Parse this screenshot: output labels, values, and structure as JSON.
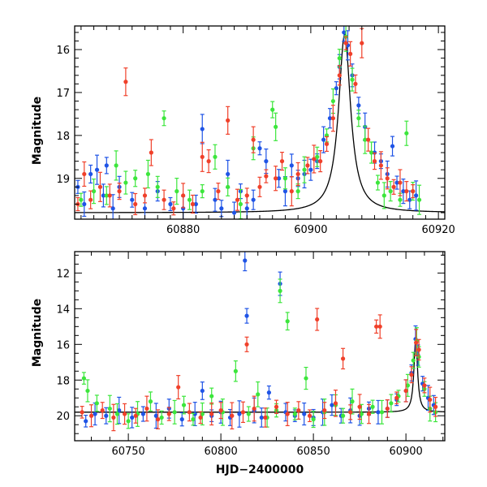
{
  "colors": {
    "blue": "#1f54e6",
    "green": "#3ce63c",
    "red": "#f0402a",
    "model": "#000000"
  },
  "chart_data": [
    {
      "type": "scatter",
      "title": "",
      "xlabel": "",
      "ylabel": "Magnitude",
      "y_inverted": true,
      "xlim": [
        60863,
        60921
      ],
      "ylim": [
        19.95,
        15.45
      ],
      "xticks": [
        60880,
        60900,
        60920
      ],
      "yticks": [
        16,
        17,
        18,
        19
      ],
      "model_curve": {
        "type": "line",
        "description": "single-lens microlensing fit",
        "t0": 60905.3,
        "baseline": 19.8,
        "peak": 15.65,
        "tE": 12
      },
      "series": [
        {
          "color_key": "blue",
          "points": [
            [
              60863.5,
              19.2
            ],
            [
              60864.5,
              19.6
            ],
            [
              60865.5,
              18.9
            ],
            [
              60866.5,
              18.8
            ],
            [
              60867.5,
              19.4
            ],
            [
              60868,
              18.7
            ],
            [
              60869,
              19.7
            ],
            [
              60870,
              19.2
            ],
            [
              60872,
              19.5
            ],
            [
              60874,
              19.7
            ],
            [
              60876,
              19.3
            ],
            [
              60878,
              19.6
            ],
            [
              60880,
              19.7
            ],
            [
              60882,
              19.6
            ],
            [
              60883,
              17.85
            ],
            [
              60885,
              19.5
            ],
            [
              60886,
              19.7
            ],
            [
              60887,
              18.9
            ],
            [
              60888,
              19.8
            ],
            [
              60889,
              19.3
            ],
            [
              60890,
              19.7
            ],
            [
              60891,
              19.5
            ],
            [
              60892,
              18.3
            ],
            [
              60893,
              18.6
            ],
            [
              60895,
              19.0
            ],
            [
              60896,
              19.3
            ],
            [
              60897,
              18.7
            ],
            [
              60898,
              19.0
            ],
            [
              60899,
              18.9
            ],
            [
              60900,
              18.8
            ],
            [
              60901,
              18.6
            ],
            [
              60902,
              18.1
            ],
            [
              60903,
              17.6
            ],
            [
              60904,
              16.9
            ],
            [
              60904.5,
              16.4
            ],
            [
              60905.2,
              15.6
            ],
            [
              60905.8,
              15.9
            ],
            [
              60906.5,
              16.6
            ],
            [
              60907.5,
              17.3
            ],
            [
              60908.5,
              17.8
            ],
            [
              60910,
              18.4
            ],
            [
              60911,
              18.6
            ],
            [
              60912,
              18.9
            ],
            [
              60912.8,
              18.25
            ],
            [
              60913.5,
              19.1
            ],
            [
              60914.5,
              19.3
            ],
            [
              60915.5,
              19.5
            ],
            [
              60916.5,
              19.4
            ]
          ]
        },
        {
          "color_key": "green",
          "points": [
            [
              60864,
              19.5
            ],
            [
              60866,
              19.3
            ],
            [
              60868,
              19.4
            ],
            [
              60869.5,
              18.7
            ],
            [
              60871,
              19.1
            ],
            [
              60872.5,
              19.0
            ],
            [
              60874.5,
              18.9
            ],
            [
              60876,
              19.2
            ],
            [
              60877,
              17.6
            ],
            [
              60879,
              19.3
            ],
            [
              60881,
              19.5
            ],
            [
              60883,
              19.3
            ],
            [
              60885,
              18.5
            ],
            [
              60887,
              19.2
            ],
            [
              60889,
              19.6
            ],
            [
              60891,
              18.3
            ],
            [
              60894,
              17.4
            ],
            [
              60894.5,
              17.8
            ],
            [
              60896,
              19.0
            ],
            [
              60898,
              19.3
            ],
            [
              60899,
              18.8
            ],
            [
              60901,
              18.5
            ],
            [
              60902.5,
              18.0
            ],
            [
              60903.5,
              17.2
            ],
            [
              60904.5,
              16.2
            ],
            [
              60905.5,
              15.7
            ],
            [
              60906.5,
              16.7
            ],
            [
              60907.5,
              17.6
            ],
            [
              60908.5,
              18.1
            ],
            [
              60909.5,
              18.4
            ],
            [
              60910.5,
              19.1
            ],
            [
              60911.5,
              19.4
            ],
            [
              60912.5,
              19.3
            ],
            [
              60914,
              19.5
            ],
            [
              60915,
              17.95
            ],
            [
              60916,
              19.3
            ],
            [
              60917,
              19.5
            ]
          ]
        },
        {
          "color_key": "red",
          "points": [
            [
              60863.5,
              19.6
            ],
            [
              60864.5,
              18.9
            ],
            [
              60865.5,
              19.5
            ],
            [
              60867,
              19.2
            ],
            [
              60868.5,
              19.4
            ],
            [
              60870,
              19.3
            ],
            [
              60871,
              16.75
            ],
            [
              60872.5,
              19.6
            ],
            [
              60874,
              19.4
            ],
            [
              60875,
              18.4
            ],
            [
              60877,
              19.5
            ],
            [
              60878.5,
              19.7
            ],
            [
              60880,
              19.4
            ],
            [
              60881.5,
              19.6
            ],
            [
              60883,
              18.5
            ],
            [
              60884,
              18.6
            ],
            [
              60885.5,
              19.3
            ],
            [
              60887,
              17.65
            ],
            [
              60888.5,
              19.5
            ],
            [
              60890,
              19.4
            ],
            [
              60891,
              18.1
            ],
            [
              60892,
              19.2
            ],
            [
              60893,
              18.95
            ],
            [
              60894.5,
              19.0
            ],
            [
              60895.5,
              18.6
            ],
            [
              60897,
              19.3
            ],
            [
              60898,
              18.9
            ],
            [
              60899.5,
              18.7
            ],
            [
              60900.5,
              18.55
            ],
            [
              60901.5,
              18.6
            ],
            [
              60902.5,
              18.2
            ],
            [
              60903.5,
              17.6
            ],
            [
              60904.5,
              16.6
            ],
            [
              60905.5,
              15.85
            ],
            [
              60906.2,
              16.1
            ],
            [
              60907,
              16.8
            ],
            [
              60908,
              15.85
            ],
            [
              60909,
              18.1
            ],
            [
              60910,
              18.6
            ],
            [
              60911,
              18.7
            ],
            [
              60912,
              19.0
            ],
            [
              60913,
              19.2
            ],
            [
              60914,
              19.1
            ],
            [
              60915,
              19.3
            ],
            [
              60916,
              19.3
            ]
          ]
        }
      ]
    },
    {
      "type": "scatter",
      "title": "",
      "xlabel": "HJD−2400000",
      "ylabel": "Magnitude",
      "y_inverted": true,
      "xlim": [
        60721,
        60921
      ],
      "ylim": [
        21.4,
        10.8
      ],
      "xticks": [
        60750,
        60800,
        60850,
        60900
      ],
      "yticks": [
        12,
        14,
        16,
        18,
        20
      ],
      "model_curve": {
        "type": "line",
        "description": "single-lens microlensing fit",
        "t0": 60905.3,
        "baseline": 19.8,
        "peak": 15.65,
        "tE": 12
      },
      "series": [
        {
          "color_key": "blue",
          "points": [
            [
              60727,
              20.3
            ],
            [
              60732,
              19.9
            ],
            [
              60738,
              20.0
            ],
            [
              60745,
              19.7
            ],
            [
              60752,
              20.1
            ],
            [
              60758,
              19.9
            ],
            [
              60765,
              20.0
            ],
            [
              60772,
              19.6
            ],
            [
              60779,
              20.2
            ],
            [
              60786,
              19.9
            ],
            [
              60790,
              18.6
            ],
            [
              60795,
              20.0
            ],
            [
              60800,
              19.8
            ],
            [
              60805,
              20.1
            ],
            [
              60810,
              19.9
            ],
            [
              60813,
              11.3
            ],
            [
              60814,
              14.4
            ],
            [
              60818,
              19.7
            ],
            [
              60822,
              20.1
            ],
            [
              60826,
              18.7
            ],
            [
              60832,
              12.6
            ],
            [
              60835,
              19.8
            ],
            [
              60840,
              20.0
            ],
            [
              60845,
              19.9
            ],
            [
              60850,
              20.1
            ],
            [
              60855,
              19.8
            ],
            [
              60860,
              19.4
            ],
            [
              60865,
              20.0
            ],
            [
              60870,
              19.7
            ],
            [
              60875,
              20.0
            ],
            [
              60880,
              19.6
            ],
            [
              60885,
              19.8
            ],
            [
              60890,
              19.6
            ],
            [
              60895,
              19.1
            ],
            [
              60900,
              18.6
            ],
            [
              60903,
              17.6
            ],
            [
              60905.2,
              15.7
            ],
            [
              60906.5,
              16.6
            ],
            [
              60909,
              18.2
            ],
            [
              60912,
              19.0
            ],
            [
              60915,
              19.4
            ]
          ]
        },
        {
          "color_key": "green",
          "points": [
            [
              60726,
              17.9
            ],
            [
              60728,
              18.6
            ],
            [
              60733,
              19.3
            ],
            [
              60740,
              19.6
            ],
            [
              60744,
              19.9
            ],
            [
              60750,
              20.3
            ],
            [
              60755,
              19.9
            ],
            [
              60762,
              19.2
            ],
            [
              60768,
              20.1
            ],
            [
              60775,
              19.8
            ],
            [
              60780,
              19.4
            ],
            [
              60785,
              20.2
            ],
            [
              60790,
              19.9
            ],
            [
              60795,
              18.9
            ],
            [
              60801,
              19.8
            ],
            [
              60808,
              17.5
            ],
            [
              60815,
              19.9
            ],
            [
              60820,
              18.8
            ],
            [
              60825,
              20.1
            ],
            [
              60830,
              19.7
            ],
            [
              60832,
              13.0
            ],
            [
              60836,
              14.7
            ],
            [
              60840,
              19.9
            ],
            [
              60846,
              17.9
            ],
            [
              60850,
              20.2
            ],
            [
              60856,
              19.8
            ],
            [
              60862,
              19.4
            ],
            [
              60866,
              20.0
            ],
            [
              60871,
              19.2
            ],
            [
              60876,
              19.9
            ],
            [
              60882,
              19.5
            ],
            [
              60887,
              19.8
            ],
            [
              60892,
              19.3
            ],
            [
              60896,
              18.9
            ],
            [
              60901,
              18.3
            ],
            [
              60904,
              16.9
            ],
            [
              60905.8,
              15.8
            ],
            [
              60907,
              16.7
            ],
            [
              60910,
              18.5
            ],
            [
              60913,
              19.6
            ],
            [
              60916,
              19.8
            ]
          ]
        },
        {
          "color_key": "red",
          "points": [
            [
              60725,
              19.8
            ],
            [
              60730,
              20.0
            ],
            [
              60736,
              19.7
            ],
            [
              60742,
              20.1
            ],
            [
              60748,
              19.9
            ],
            [
              60754,
              20.0
            ],
            [
              60760,
              19.6
            ],
            [
              60766,
              20.2
            ],
            [
              60772,
              19.9
            ],
            [
              60777,
              18.4
            ],
            [
              60783,
              19.8
            ],
            [
              60789,
              20.1
            ],
            [
              60795,
              19.9
            ],
            [
              60800,
              19.7
            ],
            [
              60806,
              20.0
            ],
            [
              60812,
              19.8
            ],
            [
              60814,
              16.0
            ],
            [
              60818,
              19.6
            ],
            [
              60824,
              20.1
            ],
            [
              60830,
              19.5
            ],
            [
              60836,
              19.9
            ],
            [
              60842,
              19.7
            ],
            [
              60848,
              20.0
            ],
            [
              60852,
              14.6
            ],
            [
              60856,
              19.7
            ],
            [
              60862,
              19.3
            ],
            [
              60866,
              16.8
            ],
            [
              60870,
              19.8
            ],
            [
              60875,
              19.5
            ],
            [
              60880,
              19.9
            ],
            [
              60884,
              15.0
            ],
            [
              60886,
              15.0
            ],
            [
              60890,
              19.6
            ],
            [
              60895,
              19.0
            ],
            [
              60900,
              18.6
            ],
            [
              60903,
              17.7
            ],
            [
              60905.5,
              15.9
            ],
            [
              60907,
              16.3
            ],
            [
              60910,
              18.3
            ],
            [
              60913,
              19.1
            ],
            [
              60916,
              19.5
            ]
          ]
        }
      ]
    }
  ]
}
